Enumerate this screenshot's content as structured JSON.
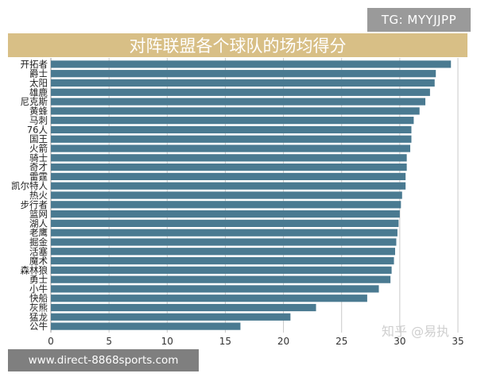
{
  "badge": "TG: MYYJJPP",
  "chart_data": {
    "type": "bar",
    "orientation": "horizontal",
    "title": "对阵联盟各个球队的场均得分",
    "categories": [
      "开拓者",
      "爵士",
      "太阳",
      "雄鹿",
      "尼克斯",
      "黄蜂",
      "马刺",
      "76人",
      "国王",
      "火箭",
      "骑士",
      "奇才",
      "雷霆",
      "凯尔特人",
      "热火",
      "步行者",
      "篮网",
      "湖人",
      "老鹰",
      "掘金",
      "活塞",
      "魔术",
      "森林狼",
      "勇士",
      "小牛",
      "快船",
      "灰熊",
      "猛龙",
      "公牛"
    ],
    "values": [
      34.4,
      33.1,
      33.0,
      32.6,
      32.2,
      31.7,
      31.2,
      31.0,
      31.0,
      30.9,
      30.6,
      30.6,
      30.5,
      30.5,
      30.2,
      30.1,
      30.0,
      29.9,
      29.8,
      29.7,
      29.6,
      29.5,
      29.3,
      29.2,
      28.2,
      27.2,
      22.8,
      20.6,
      16.3
    ],
    "xticks": [
      0,
      5,
      10,
      15,
      20,
      25,
      30,
      35
    ],
    "xlim": [
      0,
      35
    ],
    "grid": true,
    "bar_color": "#4a7a91"
  },
  "watermark": "知乎 @易执",
  "source_url": "www.direct-8868sports.com"
}
